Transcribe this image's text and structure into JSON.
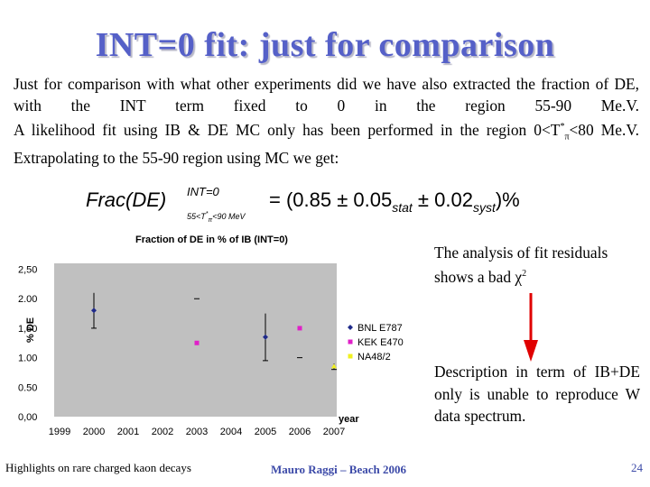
{
  "slide": {
    "title": "INT=0 fit: just for comparison",
    "para1": "Just for comparison with what other experiments did we have also extracted the fraction of DE, with the INT term fixed to 0 in the region 55-90 Me.V.",
    "para2_main": "A likelihood fit using IB & DE MC only has been performed in the region 0<T",
    "para2_sup": "*",
    "para2_sub": "π",
    "para2_end": "<80 Me.V.",
    "para3": "Extrapolating to the 55-90 region using MC we get:",
    "formula": {
      "lhs": "Frac(DE)",
      "sup": "INT=0",
      "sub": "55<T",
      "sub_star": "*",
      "sub_pi": "π",
      "sub_end": "<90 MeV",
      "rhs_a": "= (0.85 ± 0.05",
      "stat": "stat",
      "rhs_b": " ± 0.02",
      "syst": "syst",
      "rhs_c": ")%"
    },
    "note1_a": "The analysis of fit residuals shows a bad χ",
    "note1_sup": "2",
    "note2": "Description in term of IB+DE only is unable to reproduce W data spectrum.",
    "footer_left": "Highlights on rare charged kaon decays",
    "footer_mid": "Mauro Raggi – Beach 2006",
    "page_number": "24"
  },
  "chart_data": {
    "type": "scatter",
    "title": "Fraction of DE in % of IB (INT=0)",
    "xlabel": "year",
    "ylabel": "% DE",
    "x_ticks": [
      "1999",
      "2000",
      "2001",
      "2002",
      "2003",
      "2004",
      "2005",
      "2006",
      "2007"
    ],
    "y_ticks": [
      "0,00",
      "0.50",
      "1.00",
      "1,50",
      "2.00",
      "2,50"
    ],
    "xlim": [
      1999,
      2007
    ],
    "ylim": [
      0,
      2.6
    ],
    "series": [
      {
        "name": "BNL E787",
        "color": "#1f2a8a",
        "marker": "diamond",
        "points": [
          {
            "x": 2000,
            "y": 1.8,
            "err": 0.3
          },
          {
            "x": 2005,
            "y": 1.35,
            "err": 0.4
          }
        ]
      },
      {
        "name": "KEK E470",
        "color": "#e020c8",
        "marker": "square",
        "points": [
          {
            "x": 2003,
            "y": 1.25,
            "err": 0.0
          },
          {
            "x": 2006,
            "y": 1.5,
            "err": 0.0
          }
        ]
      },
      {
        "name": "NA48/2",
        "color": "#f0f020",
        "marker": "triangle",
        "points": [
          {
            "x": 2007,
            "y": 0.85,
            "err": 0.05
          }
        ]
      }
    ],
    "grey_dashes": [
      {
        "x": 2003,
        "y": 2.0
      },
      {
        "x": 2006,
        "y": 1.0
      }
    ]
  }
}
